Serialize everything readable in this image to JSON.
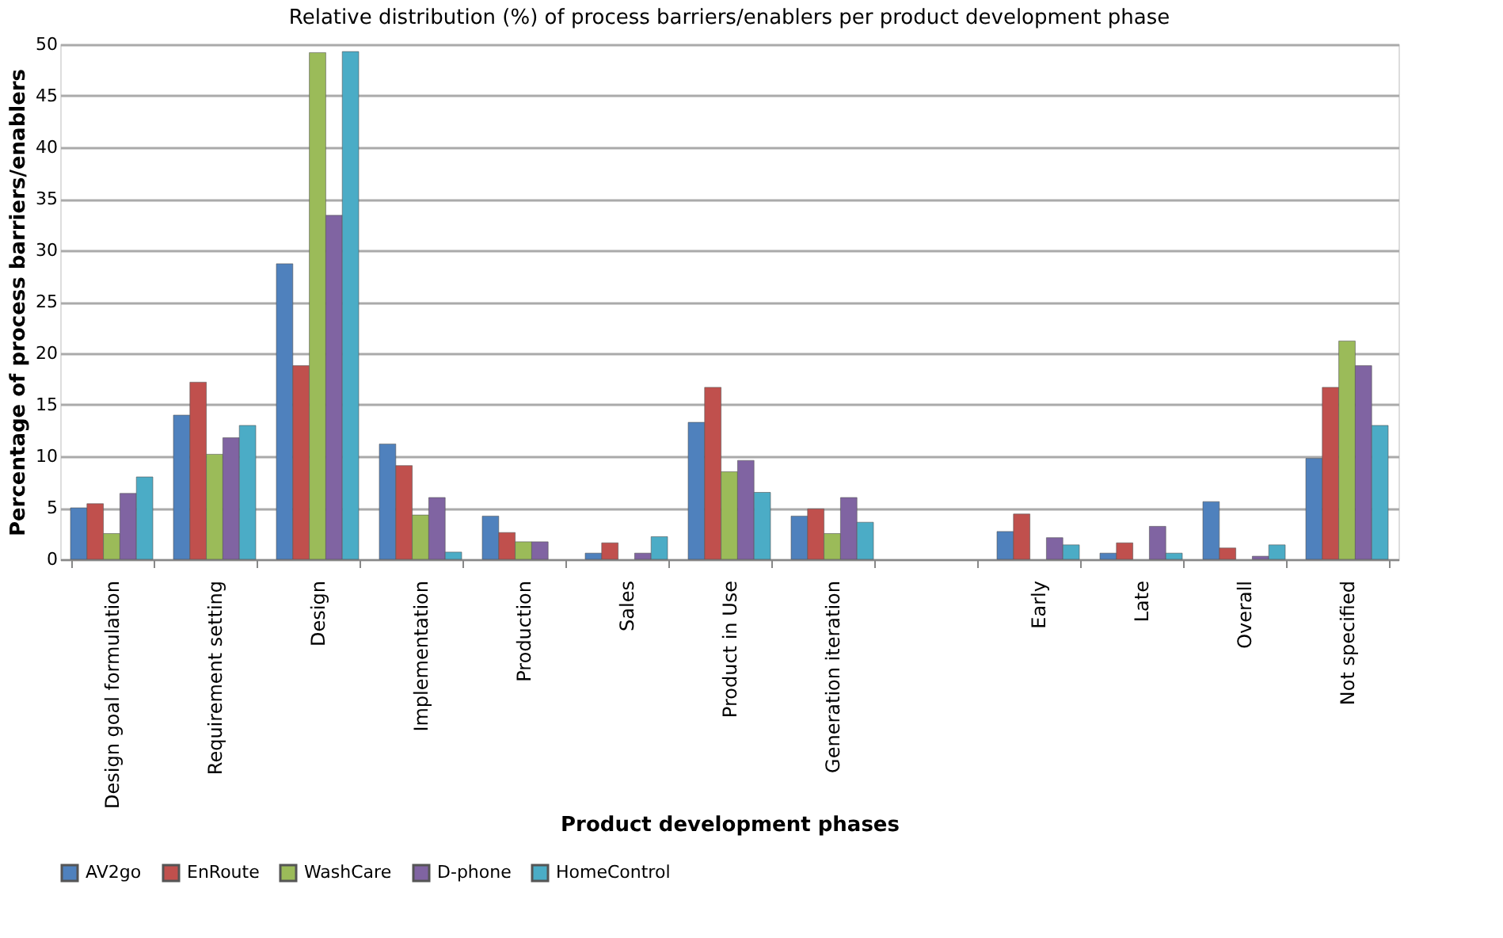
{
  "chart_data": {
    "type": "bar",
    "title": "Relative distribution (%) of process barriers/enablers per product development phase",
    "xlabel": "Product development phases",
    "ylabel": "Percentage of process barriers/enablers",
    "categories": [
      "Design goal formulation",
      "Requirement setting",
      "Design",
      "Implementation",
      "Production",
      "Sales",
      "Product in Use",
      "Generation iteration",
      null,
      "Early",
      "Late",
      "Overall",
      "Not specified"
    ],
    "series": [
      {
        "name": "AV2go",
        "color": "#4f81bd",
        "values": [
          5.0,
          14.0,
          28.7,
          11.2,
          4.2,
          0.6,
          13.3,
          4.2,
          null,
          2.7,
          0.6,
          5.6,
          9.8
        ]
      },
      {
        "name": "EnRoute",
        "color": "#c0504d",
        "values": [
          5.4,
          17.2,
          18.8,
          9.1,
          2.6,
          1.6,
          16.7,
          4.9,
          null,
          4.4,
          1.6,
          1.1,
          16.7
        ]
      },
      {
        "name": "WashCare",
        "color": "#9bbb59",
        "values": [
          2.5,
          10.2,
          49.2,
          4.3,
          1.7,
          null,
          8.5,
          2.5,
          null,
          null,
          null,
          null,
          21.2
        ]
      },
      {
        "name": "D-phone",
        "color": "#8064a2",
        "values": [
          6.4,
          11.8,
          33.4,
          6.0,
          1.7,
          0.6,
          9.6,
          6.0,
          null,
          2.1,
          3.2,
          0.3,
          18.8
        ]
      },
      {
        "name": "HomeControl",
        "color": "#4bacc6",
        "values": [
          8.0,
          13.0,
          49.3,
          0.7,
          null,
          2.2,
          6.5,
          3.6,
          null,
          1.4,
          0.6,
          1.4,
          13.0
        ]
      }
    ],
    "ylim": [
      0,
      50
    ],
    "yticks": [
      0,
      5,
      10,
      15,
      20,
      25,
      30,
      35,
      40,
      45,
      50
    ],
    "grid": "y",
    "legend": "bottom"
  }
}
